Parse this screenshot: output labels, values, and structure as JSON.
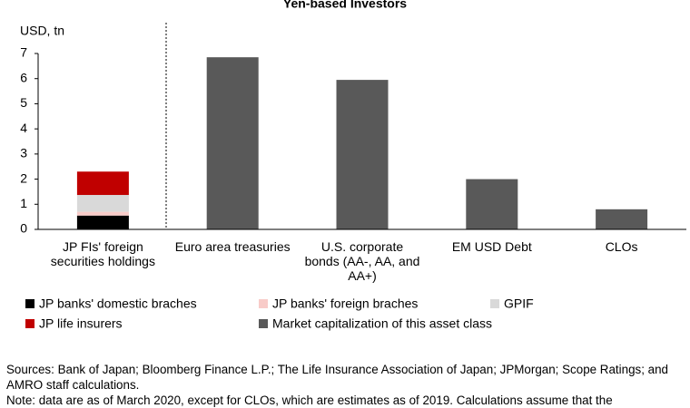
{
  "chart_data": {
    "type": "bar",
    "title": "Yen-based Investors",
    "y_axis_label": "USD, tn",
    "stacked": true,
    "categories": [
      "JP FIs' foreign securities holdings",
      "Euro area treasuries",
      "U.S. corporate bonds (AA-, AA, and AA+)",
      "EM USD Debt",
      "CLOs"
    ],
    "series": [
      {
        "name": "JP banks' domestic braches",
        "color": "#000000",
        "values": [
          0.55,
          null,
          null,
          null,
          null
        ]
      },
      {
        "name": "JP banks' foreign braches",
        "color": "#f8cbc8",
        "values": [
          0.15,
          null,
          null,
          null,
          null
        ]
      },
      {
        "name": "GPIF",
        "color": "#d9d9d9",
        "values": [
          0.67,
          null,
          null,
          null,
          null
        ]
      },
      {
        "name": "JP life insurers",
        "color": "#c00000",
        "values": [
          0.93,
          null,
          null,
          null,
          null
        ]
      },
      {
        "name": "Market capitalization of this asset class",
        "color": "#595959",
        "values": [
          null,
          6.85,
          5.95,
          2.0,
          0.8
        ]
      }
    ],
    "ylim": [
      0,
      7
    ],
    "yticks": [
      0,
      1,
      2,
      3,
      4,
      5,
      6,
      7
    ],
    "grid": false,
    "legend": "bottom",
    "sources": "Sources: Bank of Japan; Bloomberg Finance L.P.; The Life Insurance Association of Japan; JPMorgan; Scope Ratings; and AMRO staff calculations.",
    "note": "Note: data are as of March 2020, except for CLOs, which are estimates as of 2019. Calculations assume that the"
  }
}
